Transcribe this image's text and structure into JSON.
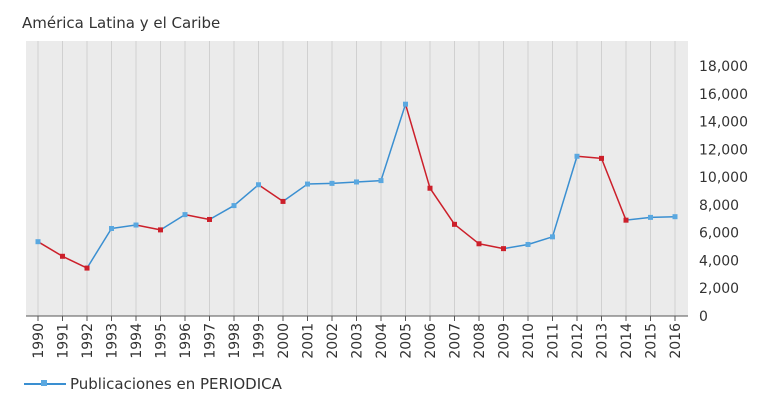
{
  "title": "América Latina y el Caribe",
  "legend": {
    "label": "Publicaciones en PERIODICA"
  },
  "colors": {
    "plot_bg": "#ebebeb",
    "grid": "#d0d0d0",
    "rise": "#3a8fd1",
    "fall": "#cc1f2a",
    "marker_rise": "#5aa8e0",
    "text": "#333333"
  },
  "chart_data": {
    "type": "line",
    "title": "América Latina y el Caribe",
    "xlabel": "",
    "ylabel": "",
    "ylim": [
      0,
      18000
    ],
    "y_ticks": [
      0,
      2000,
      4000,
      6000,
      8000,
      10000,
      12000,
      14000,
      16000,
      18000
    ],
    "y_tick_labels": [
      "0",
      "2,000",
      "4,000",
      "6,000",
      "8,000",
      "10,000",
      "12,000",
      "14,000",
      "16,000",
      "18,000"
    ],
    "y_axis_side": "right",
    "grid": "vertical",
    "legend_position": "bottom-left",
    "categories": [
      "1990",
      "1991",
      "1992",
      "1993",
      "1994",
      "1995",
      "1996",
      "1997",
      "1998",
      "1999",
      "2000",
      "2001",
      "2002",
      "2003",
      "2004",
      "2005",
      "2006",
      "2007",
      "2008",
      "2009",
      "2010",
      "2011",
      "2012",
      "2013",
      "2014",
      "2015",
      "2016"
    ],
    "series": [
      {
        "name": "Publicaciones en PERIODICA",
        "values": [
          5350,
          4300,
          3450,
          6300,
          6550,
          6200,
          7300,
          6950,
          7950,
          9450,
          8250,
          9500,
          9550,
          9650,
          9750,
          15250,
          9200,
          6600,
          5200,
          4850,
          5150,
          5700,
          11500,
          11350,
          6900,
          7100,
          7150
        ]
      }
    ]
  }
}
